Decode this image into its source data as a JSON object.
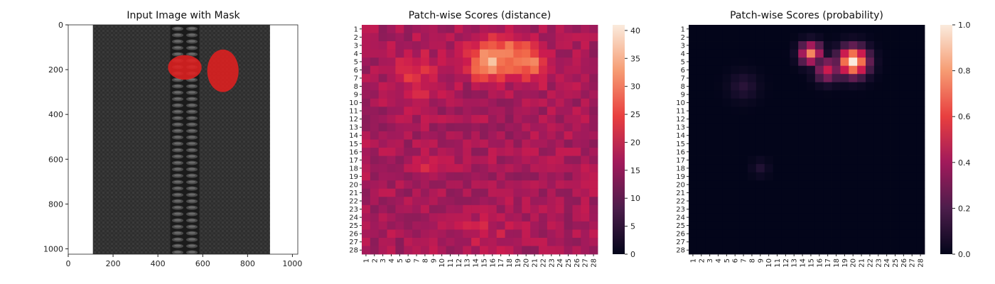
{
  "chart_data": [
    {
      "type": "image",
      "title": "Input Image with Mask",
      "xlim": [
        0,
        1024
      ],
      "ylim": [
        1024,
        0
      ],
      "xticks": [
        "0",
        "200",
        "400",
        "600",
        "800",
        "1000"
      ],
      "yticks": [
        "0",
        "200",
        "400",
        "600",
        "800",
        "1000"
      ],
      "mask_color": "#e02020",
      "fabric_color": "#2e2e2e",
      "zipper_color": "#1b1b1b",
      "mask_regions": [
        {
          "label": "defect-left",
          "cx": 520,
          "cy": 190,
          "rx": 75,
          "ry": 55
        },
        {
          "label": "defect-right",
          "cx": 690,
          "cy": 205,
          "rx": 70,
          "ry": 95
        }
      ]
    },
    {
      "type": "heatmap",
      "title": "Patch-wise Scores (distance)",
      "rows": 28,
      "cols": 28,
      "colorbar": {
        "min": 0,
        "max": 41,
        "ticks": [
          "0",
          "5",
          "10",
          "15",
          "20",
          "25",
          "30",
          "35",
          "40"
        ]
      },
      "background_level": 17,
      "hotspots": [
        {
          "row": 5,
          "col": 15,
          "value": 40,
          "spread": 1.4
        },
        {
          "row": 5,
          "col": 20,
          "value": 39,
          "spread": 1.6
        },
        {
          "row": 4,
          "col": 17,
          "value": 33,
          "spread": 1.6
        },
        {
          "row": 7,
          "col": 7,
          "value": 26,
          "spread": 2.0
        },
        {
          "row": 18,
          "col": 9,
          "value": 25,
          "spread": 1.0
        },
        {
          "row": 26,
          "col": 15,
          "value": 22,
          "spread": 2.0
        }
      ]
    },
    {
      "type": "heatmap",
      "title": "Patch-wise Scores (probability)",
      "rows": 28,
      "cols": 28,
      "colorbar": {
        "min": 0,
        "max": 1,
        "ticks": [
          "0.0",
          "0.2",
          "0.4",
          "0.6",
          "0.8",
          "1.0"
        ]
      },
      "background_level": 0,
      "hotspots": [
        {
          "row": 5,
          "col": 20,
          "value": 1.0,
          "spread": 1.2
        },
        {
          "row": 4,
          "col": 15,
          "value": 0.75,
          "spread": 0.9
        },
        {
          "row": 6,
          "col": 17,
          "value": 0.5,
          "spread": 1.0
        },
        {
          "row": 8,
          "col": 7,
          "value": 0.12,
          "spread": 1.2
        },
        {
          "row": 18,
          "col": 9,
          "value": 0.1,
          "spread": 0.7
        }
      ]
    }
  ]
}
